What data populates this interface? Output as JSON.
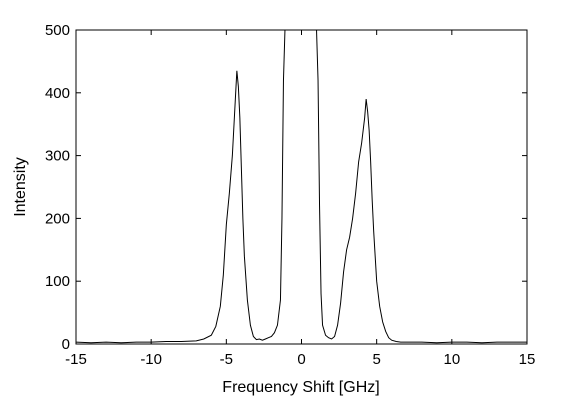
{
  "chart_data": {
    "type": "line",
    "title": "",
    "xlabel": "Frequency Shift [GHz]",
    "ylabel": "Intensity",
    "xlim": [
      -15,
      15
    ],
    "ylim": [
      0,
      500
    ],
    "xticks": [
      -15,
      -10,
      -5,
      0,
      5,
      10,
      15
    ],
    "yticks": [
      0,
      100,
      200,
      300,
      400,
      500
    ],
    "xtick_labels": [
      "-15",
      "-10",
      "-5",
      "0",
      "5",
      "10",
      "15"
    ],
    "ytick_labels": [
      "0",
      "100",
      "200",
      "300",
      "400",
      "500"
    ],
    "grid": false,
    "legend": "none",
    "line_color": "#000000",
    "series": [
      {
        "x": [
          -15,
          -14,
          -13,
          -12,
          -11,
          -10,
          -9,
          -8,
          -7,
          -6.5,
          -6,
          -5.7,
          -5.4,
          -5.2,
          -5.0,
          -4.8,
          -4.6,
          -4.5,
          -4.4,
          -4.3,
          -4.2,
          -4.1,
          -4.0,
          -3.9,
          -3.8,
          -3.6,
          -3.4,
          -3.2,
          -3.0,
          -2.8,
          -2.6,
          -2.4,
          -2.2,
          -2.0,
          -1.8,
          -1.6,
          -1.4,
          -1.3,
          -1.2,
          -1.1,
          -1.0,
          -0.8,
          -0.5,
          0,
          0.5,
          0.8,
          1.0,
          1.1,
          1.2,
          1.3,
          1.4,
          1.6,
          1.8,
          2.0,
          2.2,
          2.4,
          2.6,
          2.8,
          3.0,
          3.2,
          3.4,
          3.6,
          3.8,
          4.0,
          4.2,
          4.3,
          4.4,
          4.5,
          4.6,
          4.7,
          4.8,
          4.9,
          5.0,
          5.2,
          5.4,
          5.6,
          5.8,
          6.0,
          6.3,
          6.6,
          7,
          8,
          9,
          10,
          11,
          12,
          13,
          14,
          15
        ],
        "y": [
          3,
          2,
          3,
          2,
          3,
          3,
          4,
          4,
          5,
          8,
          14,
          28,
          60,
          110,
          190,
          240,
          300,
          345,
          390,
          435,
          410,
          360,
          280,
          200,
          140,
          70,
          30,
          12,
          7,
          8,
          6,
          8,
          10,
          12,
          18,
          30,
          70,
          200,
          420,
          500,
          500,
          500,
          500,
          500,
          500,
          500,
          500,
          420,
          220,
          80,
          30,
          14,
          10,
          8,
          12,
          30,
          65,
          115,
          150,
          170,
          200,
          240,
          290,
          320,
          360,
          390,
          370,
          340,
          290,
          230,
          180,
          140,
          100,
          60,
          35,
          20,
          10,
          6,
          4,
          3,
          3,
          3,
          2,
          3,
          3,
          2,
          3,
          3,
          3
        ]
      }
    ]
  }
}
